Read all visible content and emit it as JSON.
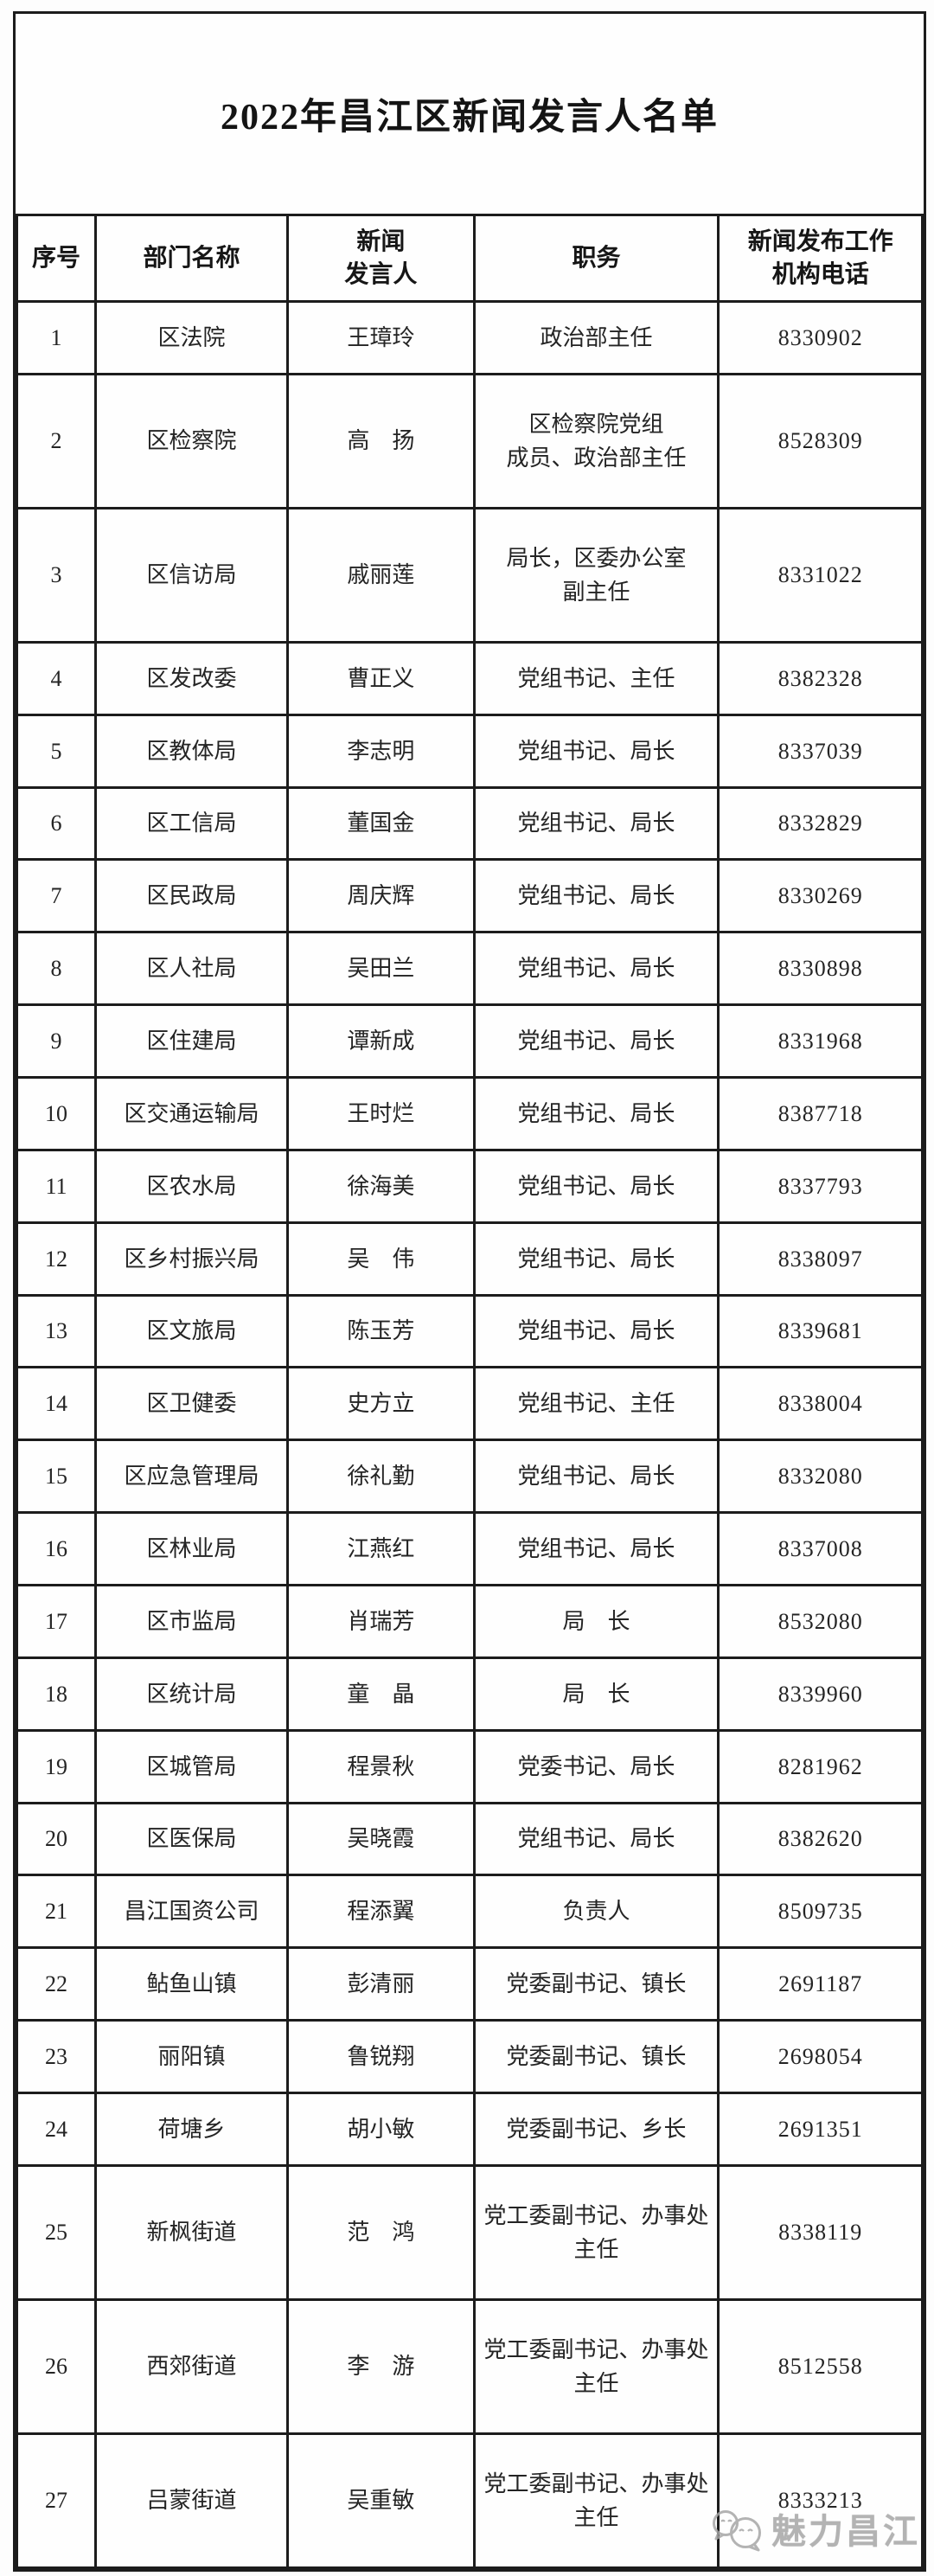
{
  "document": {
    "title": "2022年昌江区新闻发言人名单",
    "watermark": {
      "text": "魅力昌江",
      "icon": "chat-bubbles-logo"
    }
  },
  "table": {
    "columns": [
      {
        "key": "index",
        "label": "序号"
      },
      {
        "key": "department",
        "label": "部门名称"
      },
      {
        "key": "spokesperson",
        "label": "新闻\n发言人"
      },
      {
        "key": "position",
        "label": "职务"
      },
      {
        "key": "phone",
        "label": "新闻发布工作\n机构电话"
      }
    ],
    "rows": [
      {
        "index": "1",
        "department": "区法院",
        "spokesperson": "王璋玲",
        "position": "政治部主任",
        "phone": "8330902"
      },
      {
        "index": "2",
        "department": "区检察院",
        "spokesperson": "高　扬",
        "position": "区检察院党组\n成员、政治部主任",
        "phone": "8528309"
      },
      {
        "index": "3",
        "department": "区信访局",
        "spokesperson": "戚丽莲",
        "position": "局长，区委办公室\n副主任",
        "phone": "8331022"
      },
      {
        "index": "4",
        "department": "区发改委",
        "spokesperson": "曹正义",
        "position": "党组书记、主任",
        "phone": "8382328"
      },
      {
        "index": "5",
        "department": "区教体局",
        "spokesperson": "李志明",
        "position": "党组书记、局长",
        "phone": "8337039"
      },
      {
        "index": "6",
        "department": "区工信局",
        "spokesperson": "董国金",
        "position": "党组书记、局长",
        "phone": "8332829"
      },
      {
        "index": "7",
        "department": "区民政局",
        "spokesperson": "周庆辉",
        "position": "党组书记、局长",
        "phone": "8330269"
      },
      {
        "index": "8",
        "department": "区人社局",
        "spokesperson": "吴田兰",
        "position": "党组书记、局长",
        "phone": "8330898"
      },
      {
        "index": "9",
        "department": "区住建局",
        "spokesperson": "谭新成",
        "position": "党组书记、局长",
        "phone": "8331968"
      },
      {
        "index": "10",
        "department": "区交通运输局",
        "spokesperson": "王时烂",
        "position": "党组书记、局长",
        "phone": "8387718"
      },
      {
        "index": "11",
        "department": "区农水局",
        "spokesperson": "徐海美",
        "position": "党组书记、局长",
        "phone": "8337793"
      },
      {
        "index": "12",
        "department": "区乡村振兴局",
        "spokesperson": "吴　伟",
        "position": "党组书记、局长",
        "phone": "8338097"
      },
      {
        "index": "13",
        "department": "区文旅局",
        "spokesperson": "陈玉芳",
        "position": "党组书记、局长",
        "phone": "8339681"
      },
      {
        "index": "14",
        "department": "区卫健委",
        "spokesperson": "史方立",
        "position": "党组书记、主任",
        "phone": "8338004"
      },
      {
        "index": "15",
        "department": "区应急管理局",
        "spokesperson": "徐礼勤",
        "position": "党组书记、局长",
        "phone": "8332080"
      },
      {
        "index": "16",
        "department": "区林业局",
        "spokesperson": "江燕红",
        "position": "党组书记、局长",
        "phone": "8337008"
      },
      {
        "index": "17",
        "department": "区市监局",
        "spokesperson": "肖瑞芳",
        "position": "局　长",
        "phone": "8532080"
      },
      {
        "index": "18",
        "department": "区统计局",
        "spokesperson": "童　晶",
        "position": "局　长",
        "phone": "8339960"
      },
      {
        "index": "19",
        "department": "区城管局",
        "spokesperson": "程景秋",
        "position": "党委书记、局长",
        "phone": "8281962"
      },
      {
        "index": "20",
        "department": "区医保局",
        "spokesperson": "吴晓霞",
        "position": "党组书记、局长",
        "phone": "8382620"
      },
      {
        "index": "21",
        "department": "昌江国资公司",
        "spokesperson": "程添翼",
        "position": "负责人",
        "phone": "8509735"
      },
      {
        "index": "22",
        "department": "鲇鱼山镇",
        "spokesperson": "彭清丽",
        "position": "党委副书记、镇长",
        "phone": "2691187"
      },
      {
        "index": "23",
        "department": "丽阳镇",
        "spokesperson": "鲁锐翔",
        "position": "党委副书记、镇长",
        "phone": "2698054"
      },
      {
        "index": "24",
        "department": "荷塘乡",
        "spokesperson": "胡小敏",
        "position": "党委副书记、乡长",
        "phone": "2691351"
      },
      {
        "index": "25",
        "department": "新枫街道",
        "spokesperson": "范　鸿",
        "position": "党工委副书记、办事处\n主任",
        "phone": "8338119"
      },
      {
        "index": "26",
        "department": "西郊街道",
        "spokesperson": "李　游",
        "position": "党工委副书记、办事处\n主任",
        "phone": "8512558"
      },
      {
        "index": "27",
        "department": "吕蒙街道",
        "spokesperson": "吴重敏",
        "position": "党工委副书记、办事处\n主任",
        "phone": "8333213"
      }
    ]
  }
}
